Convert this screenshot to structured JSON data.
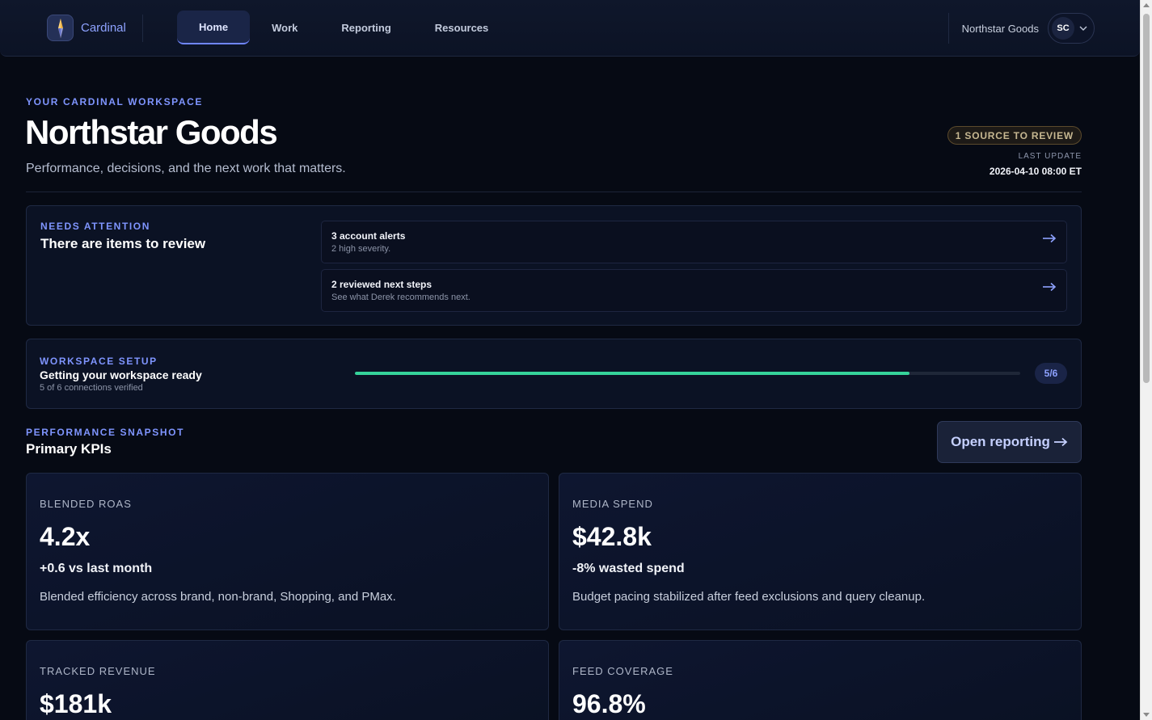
{
  "nav": {
    "brand": "Cardinal",
    "tabs": [
      {
        "label": "Home",
        "active": true
      },
      {
        "label": "Work",
        "active": false
      },
      {
        "label": "Reporting",
        "active": false
      },
      {
        "label": "Resources",
        "active": false
      }
    ],
    "org_name": "Northstar Goods",
    "avatar_initials": "SC"
  },
  "header": {
    "eyebrow": "YOUR CARDINAL WORKSPACE",
    "title": "Northstar Goods",
    "subtitle": "Performance, decisions, and the next work that matters.",
    "review_badge": "1 SOURCE TO REVIEW",
    "last_update_label": "LAST UPDATE",
    "last_update_value": "2026-04-10 08:00 ET"
  },
  "attention": {
    "eyebrow": "NEEDS ATTENTION",
    "title": "There are items to review",
    "items": [
      {
        "title": "3 account alerts",
        "subtitle": "2 high severity."
      },
      {
        "title": "2 reviewed next steps",
        "subtitle": "See what Derek recommends next."
      }
    ]
  },
  "setup": {
    "eyebrow": "WORKSPACE SETUP",
    "title": "Getting your workspace ready",
    "subtitle": "5 of 6 connections verified",
    "progress_fraction": 0.833,
    "progress_label": "5/6",
    "progress_color": "#36d39a"
  },
  "performance": {
    "eyebrow": "PERFORMANCE SNAPSHOT",
    "title": "Primary KPIs",
    "open_reporting_label": "Open reporting",
    "kpis": [
      {
        "label": "BLENDED ROAS",
        "value": "4.2x",
        "delta": "+0.6 vs last month",
        "description": "Blended efficiency across brand, non-brand, Shopping, and PMax."
      },
      {
        "label": "MEDIA SPEND",
        "value": "$42.8k",
        "delta": "-8% wasted spend",
        "description": "Budget pacing stabilized after feed exclusions and query cleanup."
      },
      {
        "label": "TRACKED REVENUE",
        "value": "$181k"
      },
      {
        "label": "FEED COVERAGE",
        "value": "96.8%"
      }
    ]
  },
  "colors": {
    "accent": "#7f95ff",
    "background": "#060a14",
    "progress": "#36d39a",
    "badge": "#c6b791"
  },
  "icons": {
    "logo": "compass-star-icon",
    "account_menu": "chevron-down-icon",
    "item_arrow": "arrow-right-icon"
  }
}
